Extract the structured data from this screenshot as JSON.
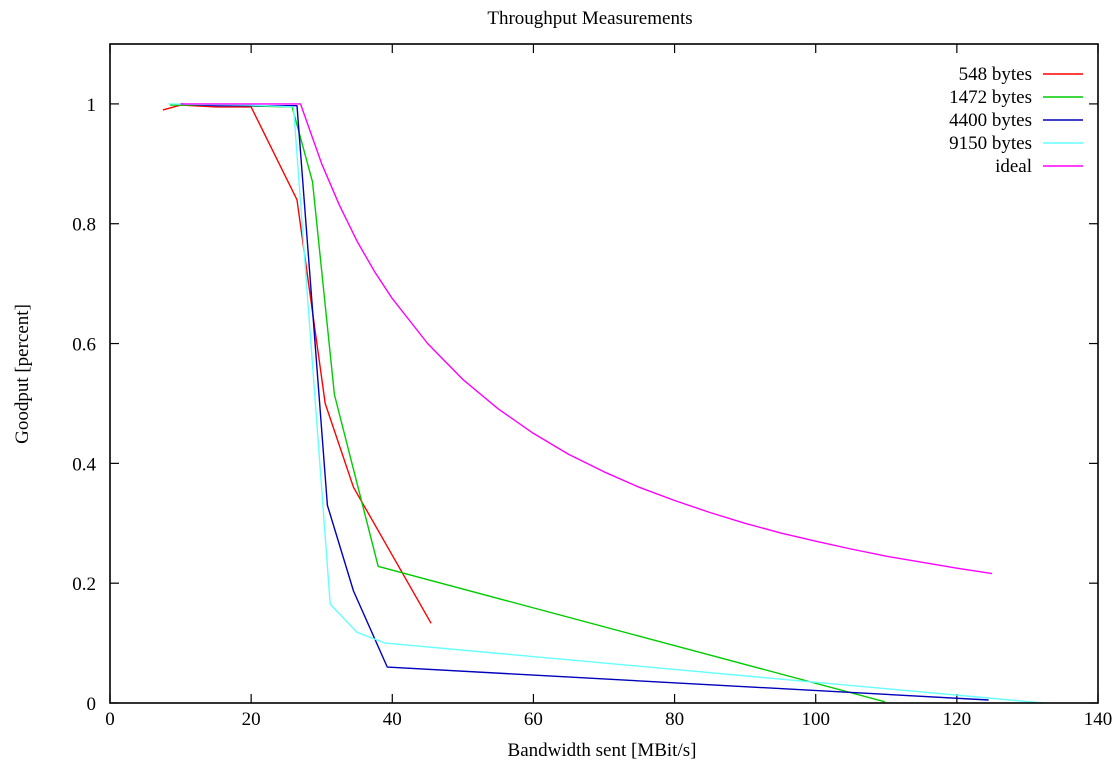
{
  "chart_data": {
    "type": "line",
    "title": "Throughput Measurements",
    "xlabel": "Bandwidth sent [MBit/s]",
    "ylabel": "Goodput [percent]",
    "xlim": [
      0,
      140
    ],
    "ylim": [
      0,
      1.1
    ],
    "xticks": [
      0,
      20,
      40,
      60,
      80,
      100,
      120,
      140
    ],
    "xtick_labels": [
      "0",
      "20",
      "40",
      "60",
      "80",
      "100",
      "120",
      "140"
    ],
    "yticks": [
      0,
      0.2,
      0.4,
      0.6,
      0.8,
      1
    ],
    "ytick_labels": [
      "0",
      "0.2",
      "0.4",
      "0.6",
      "0.8",
      "1"
    ],
    "grid": false,
    "legend_position": "top-right",
    "series": [
      {
        "name": "548 bytes",
        "color": "#ff0000",
        "x": [
          7.5,
          10,
          15,
          20,
          26.5,
          30.5,
          34.5,
          45.5
        ],
        "y": [
          0.99,
          0.998,
          0.995,
          0.995,
          0.84,
          0.5,
          0.36,
          0.133
        ]
      },
      {
        "name": "1472 bytes",
        "color": "#00cc00",
        "x": [
          8.5,
          15,
          25.8,
          28.7,
          31.8,
          38,
          109.8
        ],
        "y": [
          0.998,
          0.998,
          0.995,
          0.87,
          0.515,
          0.228,
          0.002
        ]
      },
      {
        "name": "4400 bytes",
        "color": "#0000bb",
        "x": [
          10,
          15,
          26.5,
          30.8,
          34.5,
          39.3,
          124.5
        ],
        "y": [
          1.0,
          0.997,
          0.997,
          0.33,
          0.187,
          0.06,
          0.005
        ]
      },
      {
        "name": "9150 bytes",
        "color": "#66ffff",
        "x": [
          8.3,
          20,
          26,
          31.2,
          35,
          39,
          132.2
        ],
        "y": [
          1.0,
          0.998,
          0.995,
          0.165,
          0.118,
          0.1,
          0.0
        ]
      },
      {
        "name": "ideal",
        "color": "#ff00ff",
        "x": [
          10,
          15,
          20,
          27,
          30,
          32.5,
          35,
          37.5,
          40,
          45,
          50,
          55,
          60,
          65,
          70,
          75,
          80,
          85,
          90,
          95,
          100,
          105,
          110,
          115,
          120,
          125
        ],
        "y": [
          1,
          1,
          1,
          1,
          0.9,
          0.831,
          0.771,
          0.72,
          0.675,
          0.6,
          0.54,
          0.491,
          0.45,
          0.415,
          0.386,
          0.36,
          0.338,
          0.318,
          0.3,
          0.284,
          0.27,
          0.257,
          0.245,
          0.235,
          0.225,
          0.216
        ]
      }
    ]
  }
}
